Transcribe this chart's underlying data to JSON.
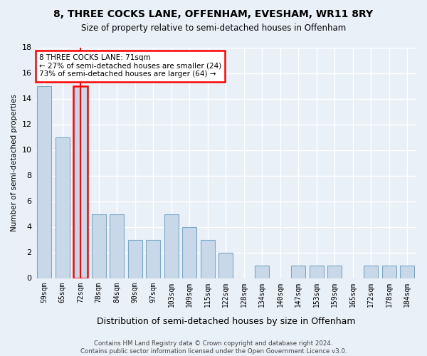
{
  "title": "8, THREE COCKS LANE, OFFENHAM, EVESHAM, WR11 8RY",
  "subtitle": "Size of property relative to semi-detached houses in Offenham",
  "xlabel": "Distribution of semi-detached houses by size in Offenham",
  "ylabel": "Number of semi-detached properties",
  "categories": [
    "59sqm",
    "65sqm",
    "72sqm",
    "78sqm",
    "84sqm",
    "90sqm",
    "97sqm",
    "103sqm",
    "109sqm",
    "115sqm",
    "122sqm",
    "128sqm",
    "134sqm",
    "140sqm",
    "147sqm",
    "153sqm",
    "159sqm",
    "165sqm",
    "172sqm",
    "178sqm",
    "184sqm"
  ],
  "values": [
    15,
    11,
    15,
    5,
    5,
    3,
    3,
    5,
    4,
    3,
    2,
    0,
    1,
    0,
    1,
    1,
    1,
    0,
    1,
    1,
    1
  ],
  "highlight_index": 2,
  "bar_color": "#c8d8e8",
  "bar_edge_color": "#7aa8c8",
  "highlight_bar_edge_color": "red",
  "annotation_text": "8 THREE COCKS LANE: 71sqm\n← 27% of semi-detached houses are smaller (24)\n73% of semi-detached houses are larger (64) →",
  "vline_x": 2,
  "ylim": [
    0,
    18
  ],
  "yticks": [
    0,
    2,
    4,
    6,
    8,
    10,
    12,
    14,
    16,
    18
  ],
  "footer": "Contains HM Land Registry data © Crown copyright and database right 2024.\nContains public sector information licensed under the Open Government Licence v3.0.",
  "bg_color": "#eaf0f8"
}
